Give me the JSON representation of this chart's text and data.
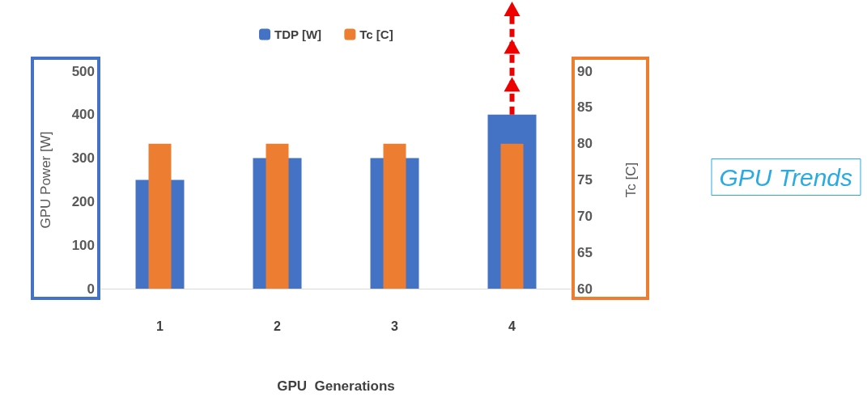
{
  "chart_data": {
    "type": "bar",
    "title": "GPU Trends",
    "xlabel": "GPU  Generations",
    "ylabel": "GPU Power [W]",
    "y2label": "Tc [C]",
    "categories": [
      "1",
      "2",
      "3",
      "4"
    ],
    "series": [
      {
        "name": "TDP [W]",
        "color": "#4472c4",
        "values": [
          250,
          300,
          300,
          400
        ]
      },
      {
        "name": "Tc [C]",
        "color": "#ed7d31",
        "values": [
          80,
          80,
          80,
          80
        ],
        "axis": "y2"
      }
    ],
    "ylim": [
      0,
      500
    ],
    "yticks": [
      0,
      100,
      200,
      300,
      400,
      500
    ],
    "y2lim": [
      60,
      90
    ],
    "y2ticks": [
      60,
      65,
      70,
      75,
      80,
      85,
      90
    ],
    "legend": "top"
  }
}
